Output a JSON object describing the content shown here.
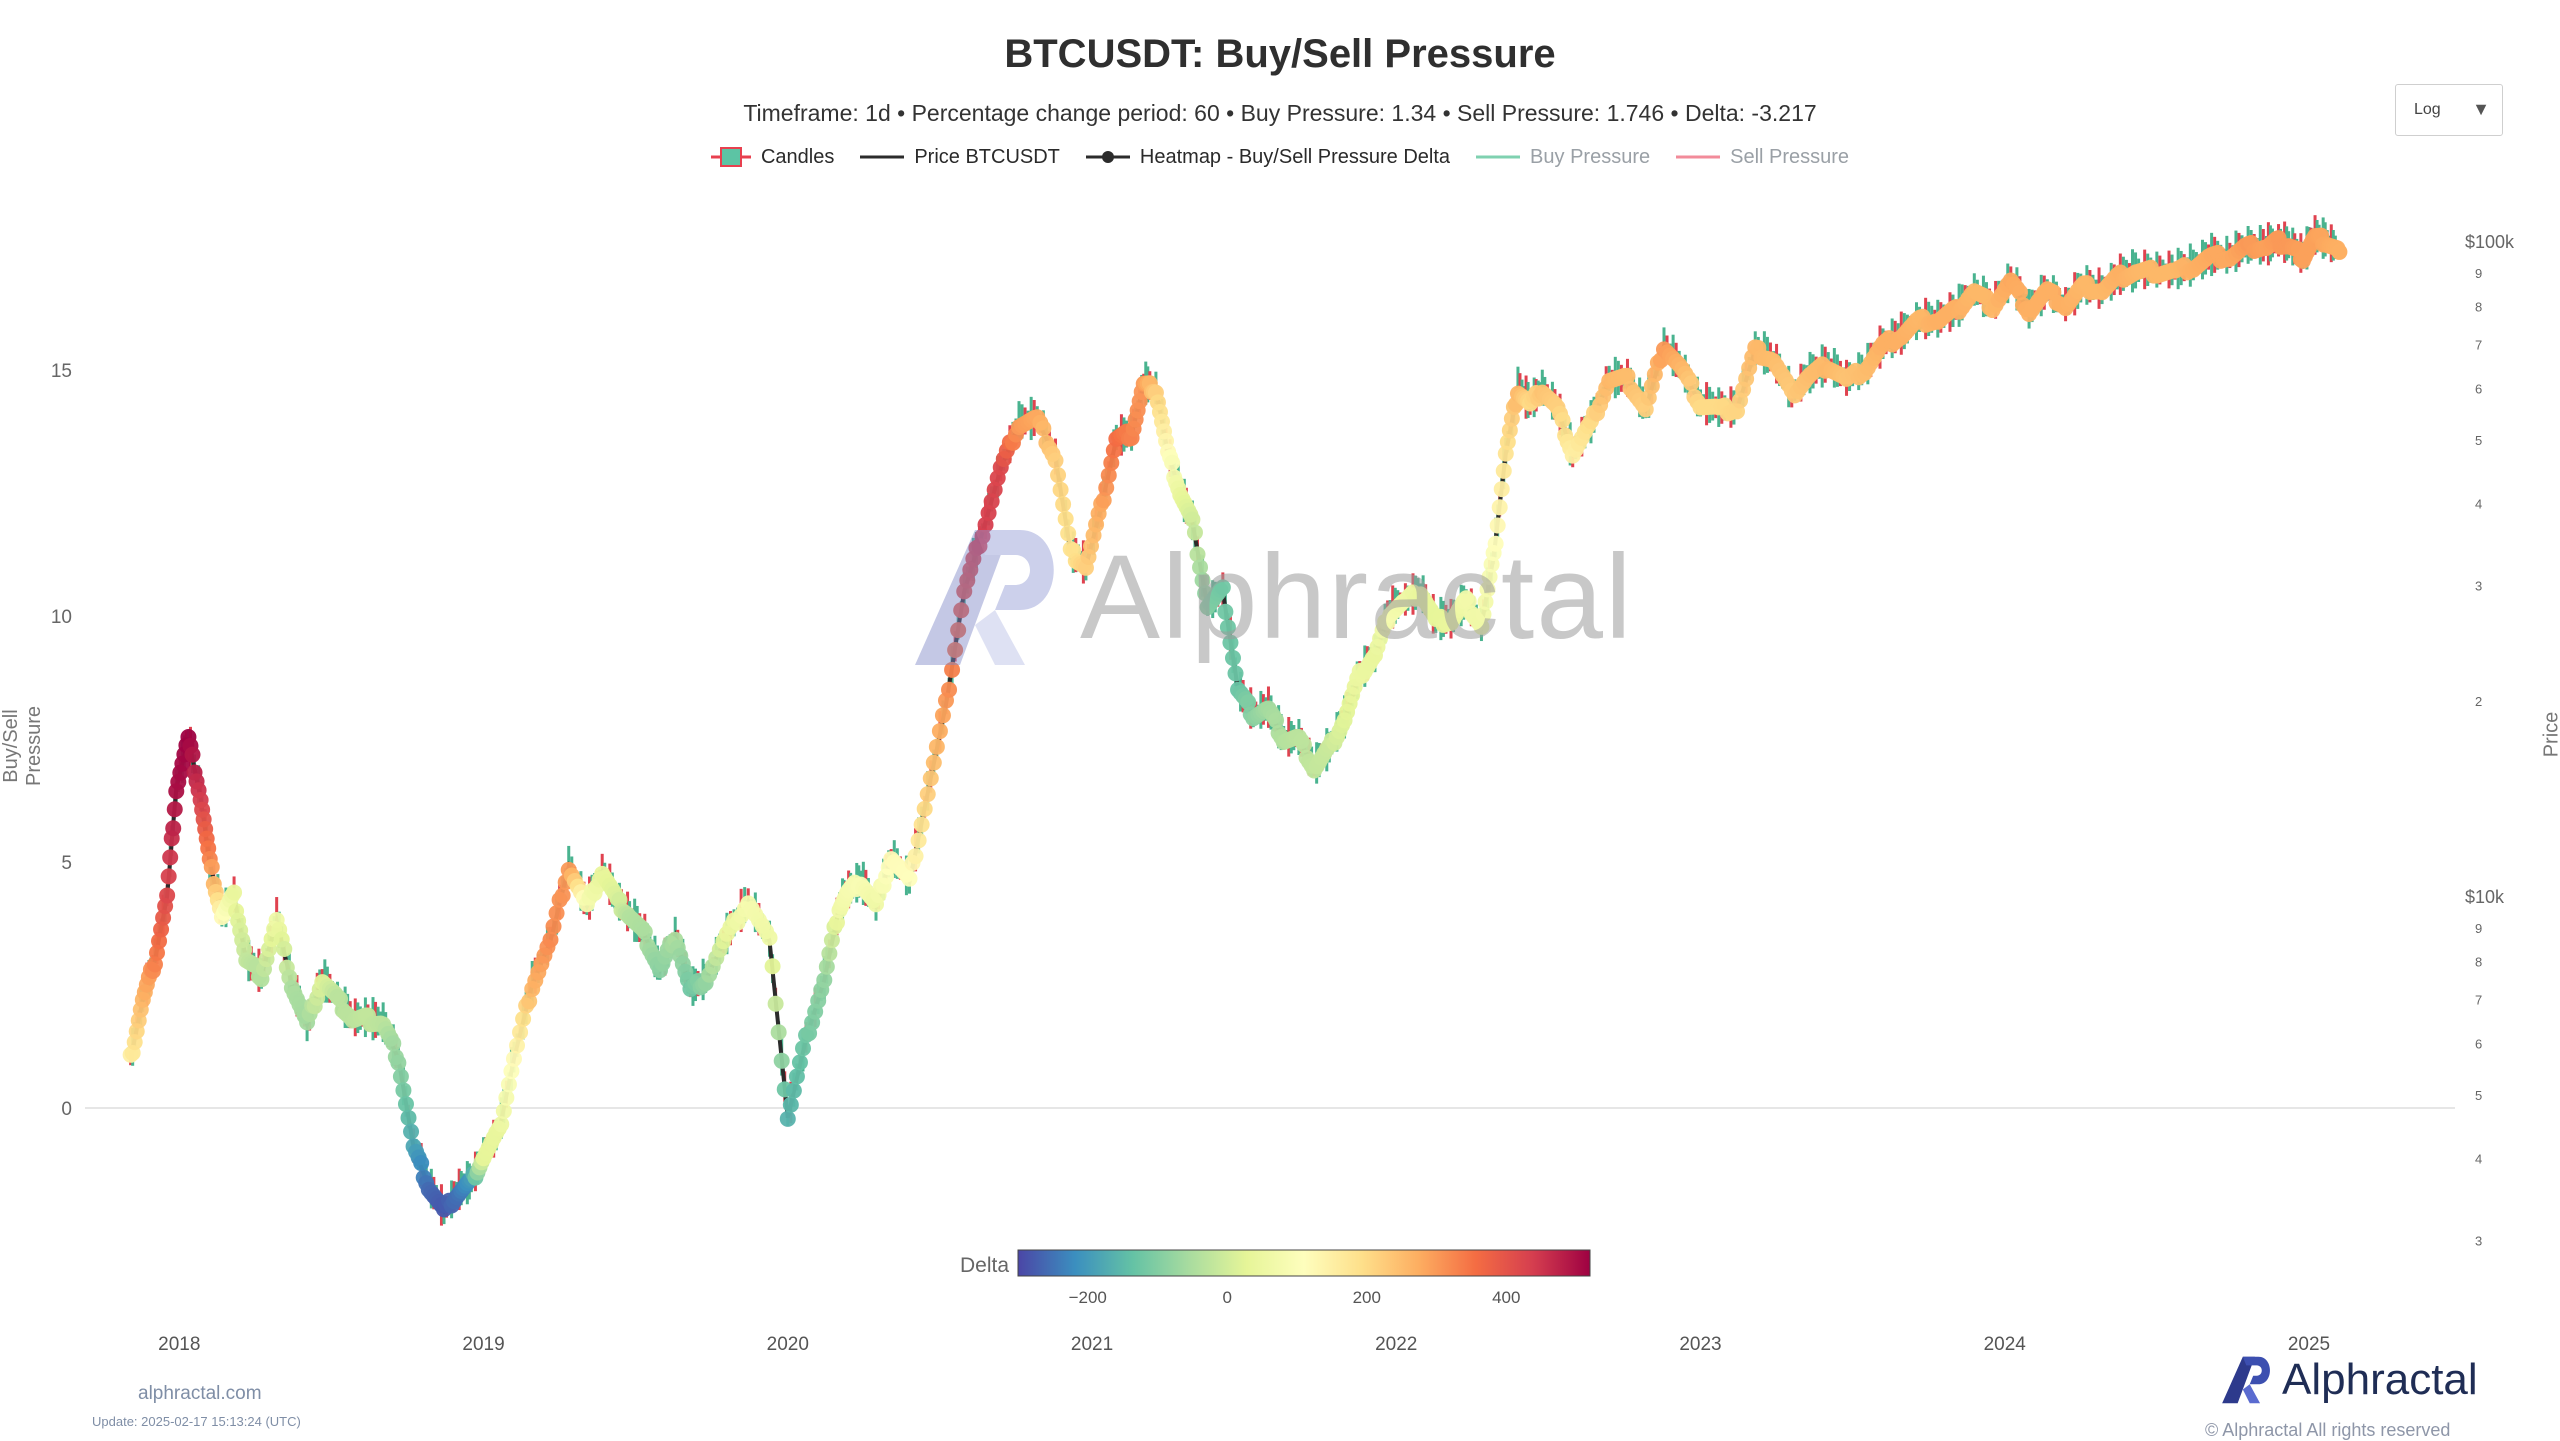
{
  "header": {
    "title": "BTCUSDT: Buy/Sell Pressure",
    "subtitle": "Timeframe: 1d  •  Percentage change period: 60  •  Buy Pressure: 1.34 • Sell Pressure: 1.746 • Delta: -3.217"
  },
  "legend": {
    "candles": "Candles",
    "price": "Price BTCUSDT",
    "heatmap": "Heatmap - Buy/Sell Pressure Delta",
    "buy": "Buy Pressure",
    "sell": "Sell Pressure"
  },
  "scale_select": {
    "value": "Log"
  },
  "watermark": {
    "text": "Alphractal"
  },
  "colorbar": {
    "label": "Delta",
    "ticks": [
      "−200",
      "0",
      "200",
      "400"
    ],
    "min": -300,
    "max": 520,
    "colors": [
      "#4b46a6",
      "#3b8fbf",
      "#64c2a5",
      "#a9dc9f",
      "#e6f598",
      "#fefebd",
      "#fee08b",
      "#fdae61",
      "#f46d43",
      "#d53e4f",
      "#9e0142"
    ]
  },
  "footer": {
    "site": "alphractal.com",
    "update": "Update: 2025-02-17 15:13:24 (UTC)",
    "brand": "Alphractal",
    "copyright": "© Alphractal All rights reserved"
  },
  "chart_data": {
    "type": "scatter",
    "title": "BTCUSDT: Buy/Sell Pressure",
    "ylabel": "Buy/Sell Pressure",
    "y2label": "Price",
    "y2scale": "log",
    "ylim": [
      -3.5,
      17.5
    ],
    "y_ticks": [
      "0",
      "5",
      "10",
      "15"
    ],
    "y2_ticks": [
      "$100k",
      "9",
      "8",
      "7",
      "6",
      "5",
      "4",
      "3",
      "2",
      "$10k",
      "9",
      "8",
      "7",
      "6",
      "5",
      "4",
      "3"
    ],
    "x_ticks": [
      "2018",
      "2019",
      "2020",
      "2021",
      "2022",
      "2023",
      "2024",
      "2025"
    ],
    "series": [
      {
        "name": "Heatmap - Buy/Sell Pressure Delta",
        "x": [
          2017.84,
          2017.88,
          2017.92,
          2017.96,
          2017.99,
          2018.03,
          2018.07,
          2018.1,
          2018.14,
          2018.18,
          2018.22,
          2018.27,
          2018.32,
          2018.37,
          2018.42,
          2018.47,
          2018.52,
          2018.57,
          2018.62,
          2018.67,
          2018.72,
          2018.77,
          2018.82,
          2018.87,
          2018.92,
          2018.96,
          2019.0,
          2019.05,
          2019.1,
          2019.16,
          2019.22,
          2019.28,
          2019.34,
          2019.39,
          2019.44,
          2019.48,
          2019.53,
          2019.58,
          2019.63,
          2019.68,
          2019.73,
          2019.8,
          2019.87,
          2019.94,
          2020.0,
          2020.06,
          2020.12,
          2020.17,
          2020.2,
          2020.24,
          2020.29,
          2020.34,
          2020.4,
          2020.46,
          2020.52,
          2020.58,
          2020.64,
          2020.7,
          2020.76,
          2020.82,
          2020.88,
          2020.93,
          2020.98,
          2021.03,
          2021.08,
          2021.13,
          2021.17,
          2021.21,
          2021.25,
          2021.29,
          2021.33,
          2021.38,
          2021.43,
          2021.48,
          2021.53,
          2021.58,
          2021.63,
          2021.68,
          2021.73,
          2021.78,
          2021.83,
          2021.88,
          2021.93,
          2021.98,
          2022.03,
          2022.08,
          2022.13,
          2022.18,
          2022.23,
          2022.28,
          2022.32,
          2022.36,
          2022.4,
          2022.44,
          2022.48,
          2022.53,
          2022.58,
          2022.64,
          2022.7,
          2022.76,
          2022.82,
          2022.88,
          2022.94,
          2023.0,
          2023.06,
          2023.12,
          2023.18,
          2023.24,
          2023.3,
          2023.36,
          2023.42,
          2023.48,
          2023.54,
          2023.6,
          2023.66,
          2023.72,
          2023.78,
          2023.84,
          2023.9,
          2023.96,
          2024.02,
          2024.08,
          2024.14,
          2024.2,
          2024.26,
          2024.32,
          2024.38,
          2024.44,
          2024.5,
          2024.56,
          2024.62,
          2024.68,
          2024.74,
          2024.8,
          2024.86,
          2024.9,
          2024.94,
          2024.98,
          2025.02,
          2025.06,
          2025.1
        ],
        "y": [
          1.0,
          2.2,
          3.0,
          4.3,
          6.5,
          7.5,
          6.3,
          5.0,
          3.9,
          4.3,
          3.0,
          2.7,
          3.8,
          2.5,
          1.7,
          2.6,
          2.2,
          1.8,
          1.8,
          1.7,
          1.0,
          -0.8,
          -1.6,
          -2.1,
          -1.7,
          -1.5,
          -1.0,
          -0.5,
          1.0,
          2.5,
          3.4,
          4.9,
          4.1,
          4.8,
          4.2,
          3.9,
          3.5,
          2.8,
          3.5,
          2.4,
          2.6,
          3.5,
          4.2,
          3.4,
          -0.2,
          1.4,
          2.6,
          4.1,
          4.4,
          4.6,
          4.1,
          5.1,
          4.6,
          6.4,
          8.2,
          10.5,
          11.7,
          13.0,
          13.9,
          14.0,
          13.2,
          11.3,
          11.0,
          12.2,
          13.6,
          13.7,
          14.7,
          14.6,
          13.3,
          12.5,
          11.9,
          10.2,
          10.5,
          8.5,
          8.0,
          8.1,
          7.5,
          7.5,
          6.9,
          7.3,
          7.9,
          8.8,
          9.2,
          10.1,
          10.3,
          10.5,
          9.9,
          9.9,
          10.3,
          9.8,
          11.2,
          13.3,
          14.6,
          14.3,
          14.6,
          14.2,
          13.3,
          13.9,
          14.8,
          14.8,
          14.2,
          15.5,
          15.0,
          14.3,
          14.2,
          14.2,
          15.4,
          15.2,
          14.5,
          14.9,
          15.1,
          14.8,
          15.0,
          15.5,
          15.7,
          16.0,
          16.0,
          16.2,
          16.6,
          16.3,
          16.8,
          16.2,
          16.6,
          16.3,
          16.7,
          16.6,
          16.9,
          17.0,
          17.0,
          17.0,
          17.1,
          17.3,
          17.3,
          17.5,
          17.5,
          17.6,
          17.5,
          17.3,
          17.7,
          17.6,
          17.4
        ],
        "delta": [
          150,
          260,
          330,
          420,
          500,
          520,
          440,
          330,
          120,
          40,
          -20,
          -40,
          60,
          -50,
          -60,
          20,
          -30,
          -30,
          -20,
          -30,
          -80,
          -180,
          -260,
          -280,
          -250,
          -200,
          30,
          40,
          120,
          260,
          320,
          300,
          80,
          40,
          10,
          -40,
          -50,
          -90,
          -50,
          -120,
          -80,
          40,
          80,
          60,
          -160,
          -120,
          -80,
          60,
          80,
          90,
          60,
          120,
          110,
          220,
          300,
          400,
          440,
          420,
          300,
          280,
          220,
          180,
          220,
          280,
          360,
          330,
          300,
          220,
          120,
          40,
          0,
          -100,
          -120,
          -130,
          -90,
          -60,
          -40,
          -30,
          -20,
          -10,
          20,
          50,
          40,
          80,
          60,
          40,
          30,
          40,
          70,
          60,
          100,
          180,
          260,
          200,
          240,
          220,
          150,
          200,
          260,
          250,
          220,
          300,
          260,
          200,
          200,
          210,
          260,
          250,
          230,
          250,
          260,
          240,
          250,
          270,
          270,
          260,
          270,
          270,
          260,
          260,
          280,
          270,
          270,
          270,
          260,
          260,
          270,
          260,
          260,
          260,
          270,
          280,
          280,
          300,
          290,
          300,
          300,
          290,
          290,
          280,
          270
        ]
      }
    ]
  }
}
